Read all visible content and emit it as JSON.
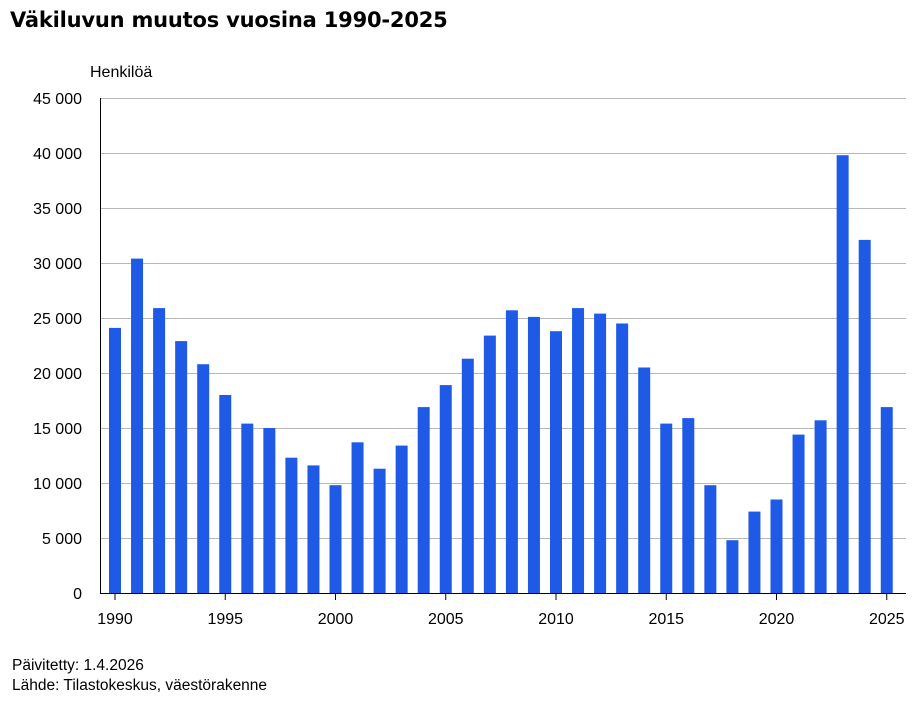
{
  "chart_data": {
    "type": "bar",
    "title": "Väkiluvun muutos vuosina 1990-2025",
    "ylabel": "Henkilöä",
    "xlabel": "",
    "x": [
      1990,
      1991,
      1992,
      1993,
      1994,
      1995,
      1996,
      1997,
      1998,
      1999,
      2000,
      2001,
      2002,
      2003,
      2004,
      2005,
      2006,
      2007,
      2008,
      2009,
      2010,
      2011,
      2012,
      2013,
      2014,
      2015,
      2016,
      2017,
      2018,
      2019,
      2020,
      2021,
      2022,
      2023,
      2024,
      2025
    ],
    "values": [
      24100,
      30400,
      25900,
      22900,
      20800,
      18000,
      15400,
      15000,
      12300,
      11600,
      9800,
      13700,
      11300,
      13400,
      16900,
      18900,
      21300,
      23400,
      25700,
      25100,
      23800,
      25900,
      25400,
      24500,
      20500,
      15400,
      15900,
      9800,
      4800,
      7400,
      8500,
      14400,
      15700,
      39800,
      32100,
      16900
    ],
    "ylim": [
      0,
      45000
    ],
    "yticks": [
      0,
      5000,
      10000,
      15000,
      20000,
      25000,
      30000,
      35000,
      40000,
      45000
    ],
    "ytick_labels": [
      "0",
      "5 000",
      "10 000",
      "15 000",
      "20 000",
      "25 000",
      "30 000",
      "35 000",
      "40 000",
      "45 000"
    ],
    "xticks": [
      1990,
      1995,
      2000,
      2005,
      2010,
      2015,
      2020,
      2025
    ],
    "grid": true,
    "bar_color": "#1f5ae6"
  },
  "footer": {
    "updated": "Päivitetty: 1.4.2026",
    "source": "Lähde: Tilastokeskus, väestörakenne"
  }
}
